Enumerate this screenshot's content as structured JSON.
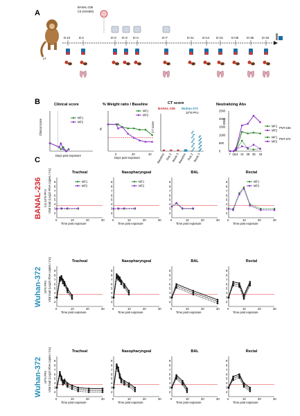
{
  "panel_labels": {
    "a": "A",
    "b": "B",
    "c": "C"
  },
  "timeline": {
    "virus": "BANAL-236",
    "virus_sub": "C3 (VeroE6)",
    "animals": "x7",
    "days": [
      "D-10",
      "D-3",
      "D+2",
      "D+3",
      "D+4",
      "D+7",
      "D+11",
      "D+14",
      "D+21",
      "D+28",
      "D+35",
      "D+43"
    ]
  },
  "row_labels": [
    {
      "name": "BANAL-236",
      "dose": "0,6.10^6 PFU",
      "color": "#d0282e"
    },
    {
      "name": "Wuhan-372",
      "dose": "10^6 PFU",
      "color": "#2a8fb5"
    },
    {
      "name": "Wuhan-372",
      "dose": "10^5 PFU",
      "color": "#2a8fb5"
    }
  ],
  "colors": {
    "mf1": "#2e8b2e",
    "mf2": "#8b2fc9",
    "threshold": "#e03030",
    "wuhan": "#2a8fb5"
  },
  "chart_data": [
    {
      "id": "clinical",
      "type": "line",
      "title": "Clinical score",
      "xlabel": "Days post exposure",
      "ylabel": "Clinical score",
      "xlim": [
        -10,
        45
      ],
      "ylim": [
        0,
        10
      ],
      "series": [
        {
          "name": "MF1",
          "x": [
            -10,
            2,
            4,
            7,
            11,
            14
          ],
          "y": [
            2,
            1,
            0.5,
            1,
            0,
            0.5
          ]
        },
        {
          "name": "MF2",
          "x": [
            -10,
            2,
            4,
            7,
            11,
            14
          ],
          "y": [
            2,
            1,
            2,
            0.5,
            0,
            0.5
          ]
        }
      ]
    },
    {
      "id": "weight",
      "type": "line",
      "title": "% Weight ratio / Baseline",
      "xlabel": "Days post exposure",
      "ylabel": "%",
      "xlim": [
        -10,
        45
      ],
      "ylim": [
        -20,
        10
      ],
      "series": [
        {
          "name": "MF1",
          "x": [
            -10,
            0,
            2,
            7,
            14,
            21,
            28,
            35,
            43
          ],
          "y": [
            0,
            0,
            0,
            -2,
            -3,
            -3,
            -4,
            -4,
            -8
          ]
        },
        {
          "name": "MF2",
          "x": [
            -10,
            0,
            2,
            7,
            14,
            21,
            28,
            35,
            43
          ],
          "y": [
            0,
            0,
            -3,
            -2,
            -7,
            -10,
            -12,
            -13,
            -13
          ]
        }
      ]
    },
    {
      "id": "ct",
      "type": "scatter",
      "title": "CT score",
      "subtitle": "Wuhan-372",
      "subtitle2": "10^6 PFU",
      "label_banal": "BANAL-236",
      "categories": [
        "Baseline",
        "Day 2",
        "Week 3",
        "Baseline",
        "Day 2",
        "Week 3"
      ],
      "ylabel": "CT score",
      "ylim": [
        0,
        80
      ]
    },
    {
      "id": "nab",
      "type": "line",
      "title": "Neutralizing Abs",
      "xlabel": "",
      "ylabel": "ID50",
      "categories": [
        "7",
        "11",
        "14",
        "21",
        "28",
        "35",
        "43"
      ],
      "yticks": [
        "0",
        "500",
        "1000",
        "1500",
        "2000",
        "2500"
      ],
      "ylim": [
        0,
        2500
      ],
      "series": [
        {
          "name": "MF1",
          "virus": "PNT-236",
          "x": [
            7,
            11,
            14,
            21,
            28,
            35,
            43
          ],
          "y": [
            0,
            0,
            80,
            1200,
            1100,
            1150,
            1100
          ]
        },
        {
          "name": "MF2",
          "virus": "PNT-236",
          "x": [
            7,
            11,
            14,
            21,
            28,
            35,
            43
          ],
          "y": [
            0,
            0,
            200,
            1600,
            1700,
            2200,
            1800
          ]
        },
        {
          "name": "MF1",
          "virus": "PNT-372",
          "x": [
            7,
            11,
            14,
            21,
            28,
            35,
            43
          ],
          "y": [
            0,
            0,
            50,
            650,
            150,
            100,
            150
          ]
        },
        {
          "name": "MF2",
          "virus": "PNT-372",
          "x": [
            7,
            11,
            14,
            21,
            28,
            35,
            43
          ],
          "y": [
            0,
            0,
            100,
            300,
            200,
            400,
            150
          ]
        }
      ]
    },
    {
      "id": "banal",
      "type": "line",
      "ylabel": "Viral load (Log10 RNA copies / mL)",
      "xlabel": "Time post exposure",
      "panels": [
        "Tracheal",
        "Nasopharyngeal",
        "BAL",
        "Rectal"
      ],
      "xlim": [
        0,
        30
      ],
      "ylim": [
        1,
        10
      ],
      "threshold": 3.7
    },
    {
      "id": "w6",
      "type": "line",
      "ylabel": "Viral load (Log10 RNA copies / mL)",
      "xlabel": "Time post exposure",
      "panels": [
        "Tracheal",
        "Nasopharyngeal",
        "BAL",
        "Rectal"
      ],
      "xlim": [
        0,
        30
      ],
      "ylim": [
        1,
        10
      ],
      "threshold": 3.7
    },
    {
      "id": "w5",
      "type": "line",
      "ylabel": "Viral load (Log10 RNA copies / mL)",
      "xlabel": "Time post exposure",
      "panels": [
        "Tracheal",
        "Nasopharyngeal",
        "BAL",
        "Rectal"
      ],
      "xlim": [
        0,
        30
      ],
      "ylim": [
        1,
        10
      ],
      "threshold": 3.7
    }
  ]
}
